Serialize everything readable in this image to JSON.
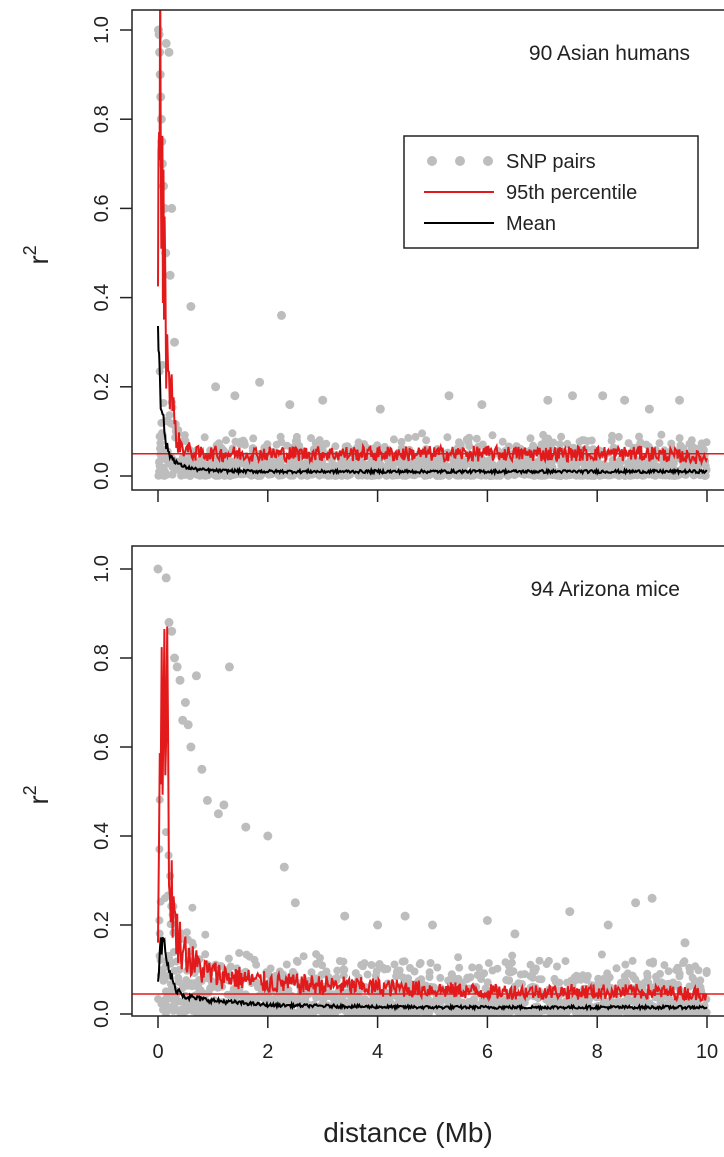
{
  "chart_data": [
    {
      "type": "scatter",
      "title": "90 Asian humans",
      "xlabel": "",
      "ylabel": "r",
      "ylabel_superscript": "2",
      "xlim": [
        0,
        10
      ],
      "ylim": [
        0,
        1
      ],
      "y_ticks": [
        "0.0",
        "0.2",
        "0.4",
        "0.6",
        "0.8",
        "1.0"
      ],
      "grid": false,
      "legend_position": "top-right",
      "threshold_line": 0.05,
      "colors": {
        "points": "#bdbdbd",
        "percentile": "#e31a1c",
        "mean": "#000000"
      },
      "series": [
        {
          "name": "SNP pairs",
          "kind": "points",
          "x": [
            0.01,
            0.02,
            0.03,
            0.04,
            0.05,
            0.06,
            0.07,
            0.08,
            0.1,
            0.12,
            0.14,
            0.15,
            0.2,
            0.25,
            0.22,
            0.3,
            0.6,
            1.05,
            1.4,
            1.85,
            2.25,
            2.4,
            3.0,
            4.05,
            5.3,
            5.9,
            7.1,
            7.55,
            8.1,
            8.5,
            8.95,
            9.5
          ],
          "y": [
            1.0,
            0.99,
            0.95,
            0.9,
            0.85,
            0.8,
            0.75,
            0.7,
            0.65,
            0.6,
            0.5,
            0.97,
            0.95,
            0.6,
            0.45,
            0.3,
            0.38,
            0.2,
            0.18,
            0.21,
            0.36,
            0.16,
            0.17,
            0.15,
            0.18,
            0.16,
            0.17,
            0.18,
            0.18,
            0.17,
            0.15,
            0.17
          ]
        },
        {
          "name": "95th percentile",
          "kind": "line",
          "x": [
            0.0,
            0.02,
            0.04,
            0.06,
            0.08,
            0.1,
            0.12,
            0.15,
            0.2,
            0.25,
            0.3,
            0.35,
            0.4,
            0.5,
            0.7,
            1.0,
            1.5,
            2.0,
            3.0,
            4.0,
            5.0,
            6.0,
            7.0,
            8.0,
            9.0,
            10.0
          ],
          "y": [
            0.35,
            1.0,
            0.9,
            0.62,
            0.58,
            0.55,
            0.45,
            0.3,
            0.24,
            0.2,
            0.11,
            0.08,
            0.07,
            0.06,
            0.05,
            0.05,
            0.05,
            0.05,
            0.05,
            0.05,
            0.05,
            0.05,
            0.05,
            0.05,
            0.05,
            0.04
          ]
        },
        {
          "name": "Mean",
          "kind": "line",
          "x": [
            0.0,
            0.02,
            0.05,
            0.1,
            0.15,
            0.2,
            0.3,
            0.4,
            0.5,
            0.7,
            1.0,
            2.0,
            3.0,
            4.0,
            5.0,
            6.0,
            7.0,
            8.0,
            9.0,
            10.0
          ],
          "y": [
            0.33,
            0.3,
            0.18,
            0.12,
            0.07,
            0.05,
            0.035,
            0.025,
            0.02,
            0.015,
            0.012,
            0.01,
            0.01,
            0.01,
            0.01,
            0.01,
            0.01,
            0.01,
            0.01,
            0.01
          ]
        }
      ]
    },
    {
      "type": "scatter",
      "title": "94 Arizona mice",
      "xlabel": "distance (Mb)",
      "ylabel": "r",
      "ylabel_superscript": "2",
      "xlim": [
        0,
        10
      ],
      "ylim": [
        0,
        1
      ],
      "x_ticks": [
        "0",
        "2",
        "4",
        "6",
        "8",
        "10"
      ],
      "y_ticks": [
        "0.0",
        "0.2",
        "0.4",
        "0.6",
        "0.8",
        "1.0"
      ],
      "grid": false,
      "threshold_line": 0.045,
      "colors": {
        "points": "#bdbdbd",
        "percentile": "#e31a1c",
        "mean": "#000000"
      },
      "series": [
        {
          "kind": "points",
          "x": [
            0.0,
            0.15,
            0.2,
            0.25,
            0.3,
            0.35,
            0.4,
            0.5,
            0.55,
            0.6,
            0.7,
            0.8,
            0.9,
            1.1,
            1.3,
            1.6,
            2.0,
            2.3,
            2.5,
            3.4,
            4.0,
            4.5,
            5.0,
            6.0,
            6.5,
            7.5,
            8.2,
            8.7,
            9.0,
            9.6,
            1.2,
            0.45
          ],
          "y": [
            1.0,
            0.98,
            0.88,
            0.86,
            0.8,
            0.78,
            0.75,
            0.7,
            0.65,
            0.6,
            0.76,
            0.55,
            0.48,
            0.45,
            0.78,
            0.42,
            0.4,
            0.33,
            0.25,
            0.22,
            0.2,
            0.22,
            0.2,
            0.21,
            0.18,
            0.23,
            0.2,
            0.25,
            0.26,
            0.16,
            0.47,
            0.66
          ]
        },
        {
          "kind": "line",
          "x": [
            0.0,
            0.05,
            0.1,
            0.15,
            0.2,
            0.25,
            0.3,
            0.4,
            0.5,
            0.6,
            0.8,
            1.0,
            1.5,
            2.0,
            3.0,
            4.0,
            5.0,
            6.0,
            7.0,
            8.0,
            9.0,
            10.0
          ],
          "y": [
            0.2,
            0.73,
            0.65,
            0.86,
            0.3,
            0.28,
            0.2,
            0.16,
            0.14,
            0.12,
            0.1,
            0.09,
            0.08,
            0.07,
            0.065,
            0.06,
            0.055,
            0.05,
            0.05,
            0.05,
            0.05,
            0.045
          ]
        },
        {
          "kind": "line",
          "x": [
            0.0,
            0.05,
            0.1,
            0.15,
            0.2,
            0.3,
            0.4,
            0.5,
            0.7,
            1.0,
            1.5,
            2.0,
            3.0,
            4.0,
            5.0,
            6.0,
            7.0,
            8.0,
            9.0,
            10.0
          ],
          "y": [
            0.08,
            0.15,
            0.16,
            0.12,
            0.1,
            0.06,
            0.05,
            0.04,
            0.035,
            0.03,
            0.025,
            0.02,
            0.018,
            0.016,
            0.015,
            0.015,
            0.015,
            0.015,
            0.015,
            0.015
          ]
        }
      ]
    }
  ]
}
